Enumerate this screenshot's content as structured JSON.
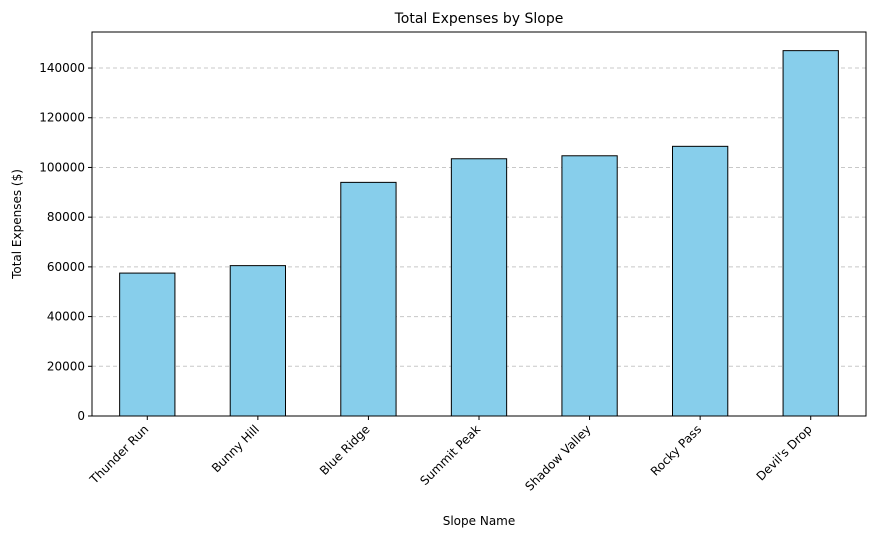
{
  "chart_data": {
    "type": "bar",
    "title": "Total Expenses by Slope",
    "xlabel": "Slope Name",
    "ylabel": "Total Expenses ($)",
    "categories": [
      "Thunder Run",
      "Bunny Hill",
      "Blue Ridge",
      "Summit Peak",
      "Shadow Valley",
      "Rocky Pass",
      "Devil's Drop"
    ],
    "values": [
      57500,
      60500,
      94000,
      103500,
      104700,
      108500,
      147000
    ],
    "ylim": [
      0,
      154500
    ],
    "yticks": [
      0,
      20000,
      40000,
      60000,
      80000,
      100000,
      120000,
      140000
    ],
    "grid": "y-dashed",
    "bar_color": "#87CEEB",
    "edge_color": "#000000",
    "grid_color": "#c8c8c8"
  }
}
